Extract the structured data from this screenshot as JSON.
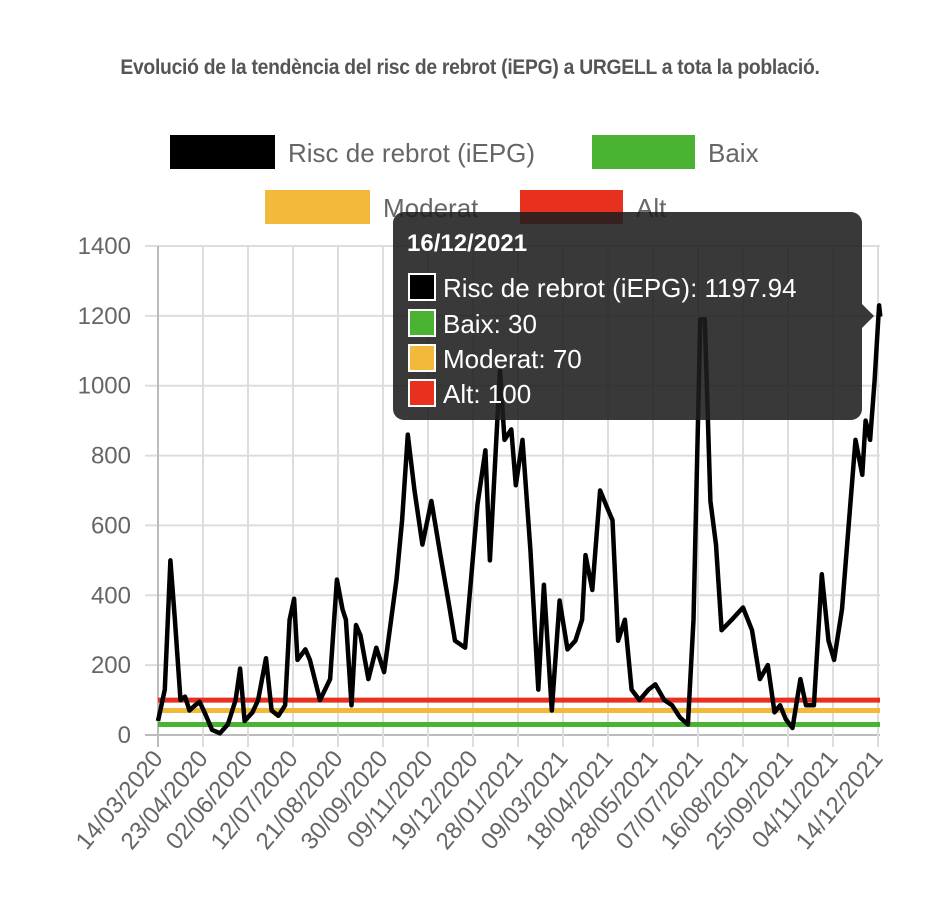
{
  "chart_data": {
    "type": "line",
    "title": "Evolució de la tendència del risc de rebrot (iEPG) a URGELL a tota la població.",
    "xlabel": "",
    "ylabel": "",
    "ylim": [
      0,
      1400
    ],
    "y_ticks": [
      "0",
      "200",
      "400",
      "600",
      "800",
      "1000",
      "1200",
      "1400"
    ],
    "x_ticks": [
      "14/03/2020",
      "23/04/2020",
      "02/06/2020",
      "12/07/2020",
      "21/08/2020",
      "30/09/2020",
      "09/11/2020",
      "19/12/2020",
      "28/01/2021",
      "09/03/2021",
      "18/04/2021",
      "28/05/2021",
      "07/07/2021",
      "16/08/2021",
      "25/09/2021",
      "04/11/2021",
      "14/12/2021"
    ],
    "grid": true,
    "legend_placement": "top",
    "legend": [
      {
        "name": "Risc de rebrot (iEPG)",
        "color": "#000000"
      },
      {
        "name": "Baix",
        "color": "#4bb332"
      },
      {
        "name": "Moderat",
        "color": "#f2b93b"
      },
      {
        "name": "Alt",
        "color": "#e8301e"
      }
    ],
    "thresholds": [
      {
        "name": "Baix",
        "value": 30,
        "color": "#4bb332"
      },
      {
        "name": "Moderat",
        "value": 70,
        "color": "#f2b93b"
      },
      {
        "name": "Alt",
        "value": 100,
        "color": "#e8301e"
      }
    ],
    "series": [
      {
        "name": "Risc de rebrot (iEPG)",
        "color": "#000000",
        "x": [
          "2020-03-14",
          "2020-03-20",
          "2020-03-25",
          "2020-03-29",
          "2020-04-03",
          "2020-04-07",
          "2020-04-11",
          "2020-04-16",
          "2020-04-20",
          "2020-04-25",
          "2020-05-01",
          "2020-05-08",
          "2020-05-15",
          "2020-05-22",
          "2020-05-26",
          "2020-05-30",
          "2020-06-06",
          "2020-06-11",
          "2020-06-18",
          "2020-06-23",
          "2020-06-29",
          "2020-07-05",
          "2020-07-09",
          "2020-07-13",
          "2020-07-16",
          "2020-07-23",
          "2020-07-27",
          "2020-08-05",
          "2020-08-14",
          "2020-08-20",
          "2020-08-25",
          "2020-08-28",
          "2020-09-02",
          "2020-09-06",
          "2020-09-10",
          "2020-09-17",
          "2020-09-24",
          "2020-10-01",
          "2020-10-12",
          "2020-10-17",
          "2020-10-22",
          "2020-10-28",
          "2020-11-04",
          "2020-11-12",
          "2020-11-20",
          "2020-11-27",
          "2020-12-03",
          "2020-12-12",
          "2020-12-23",
          "2020-12-30",
          "2021-01-03",
          "2021-01-12",
          "2021-01-16",
          "2021-01-22",
          "2021-01-26",
          "2021-02-01",
          "2021-02-08",
          "2021-02-15",
          "2021-02-20",
          "2021-02-27",
          "2021-03-06",
          "2021-03-13",
          "2021-03-20",
          "2021-03-26",
          "2021-03-29",
          "2021-04-04",
          "2021-04-11",
          "2021-04-18",
          "2021-04-22",
          "2021-04-27",
          "2021-05-03",
          "2021-05-09",
          "2021-05-16",
          "2021-05-24",
          "2021-05-30",
          "2021-06-07",
          "2021-06-14",
          "2021-06-21",
          "2021-06-28",
          "2021-07-03",
          "2021-07-09",
          "2021-07-13",
          "2021-07-18",
          "2021-07-23",
          "2021-07-28",
          "2021-08-06",
          "2021-08-16",
          "2021-08-24",
          "2021-08-31",
          "2021-09-07",
          "2021-09-13",
          "2021-09-18",
          "2021-09-23",
          "2021-09-29",
          "2021-10-06",
          "2021-10-11",
          "2021-10-18",
          "2021-10-25",
          "2021-10-31",
          "2021-11-05",
          "2021-11-12",
          "2021-11-19",
          "2021-11-24",
          "2021-11-30",
          "2021-12-03",
          "2021-12-07",
          "2021-12-11",
          "2021-12-15",
          "2021-12-16"
        ],
        "values": [
          40,
          130,
          500,
          330,
          100,
          110,
          70,
          85,
          95,
          60,
          15,
          5,
          30,
          100,
          190,
          40,
          65,
          100,
          220,
          70,
          55,
          85,
          330,
          390,
          215,
          245,
          215,
          100,
          160,
          445,
          360,
          330,
          85,
          315,
          285,
          160,
          250,
          180,
          445,
          615,
          860,
          700,
          545,
          670,
          515,
          385,
          270,
          250,
          660,
          815,
          500,
          1045,
          845,
          875,
          715,
          845,
          530,
          130,
          430,
          70,
          385,
          245,
          270,
          330,
          515,
          415,
          700,
          645,
          615,
          270,
          330,
          130,
          100,
          130,
          145,
          100,
          85,
          50,
          30,
          330,
          1190,
          1190,
          670,
          545,
          300,
          330,
          365,
          300,
          160,
          200,
          65,
          85,
          45,
          20,
          160,
          85,
          85,
          460,
          270,
          215,
          360,
          645,
          845,
          745,
          900,
          845,
          1015,
          1230,
          1197.94
        ]
      }
    ]
  },
  "tooltip": {
    "title": "16/12/2021",
    "items": [
      {
        "label": "Risc de rebrot (iEPG): 1197.94",
        "color": "#000000"
      },
      {
        "label": "Baix: 30",
        "color": "#4bb332"
      },
      {
        "label": "Moderat: 70",
        "color": "#f2b93b"
      },
      {
        "label": "Alt: 100",
        "color": "#e8301e"
      }
    ]
  }
}
